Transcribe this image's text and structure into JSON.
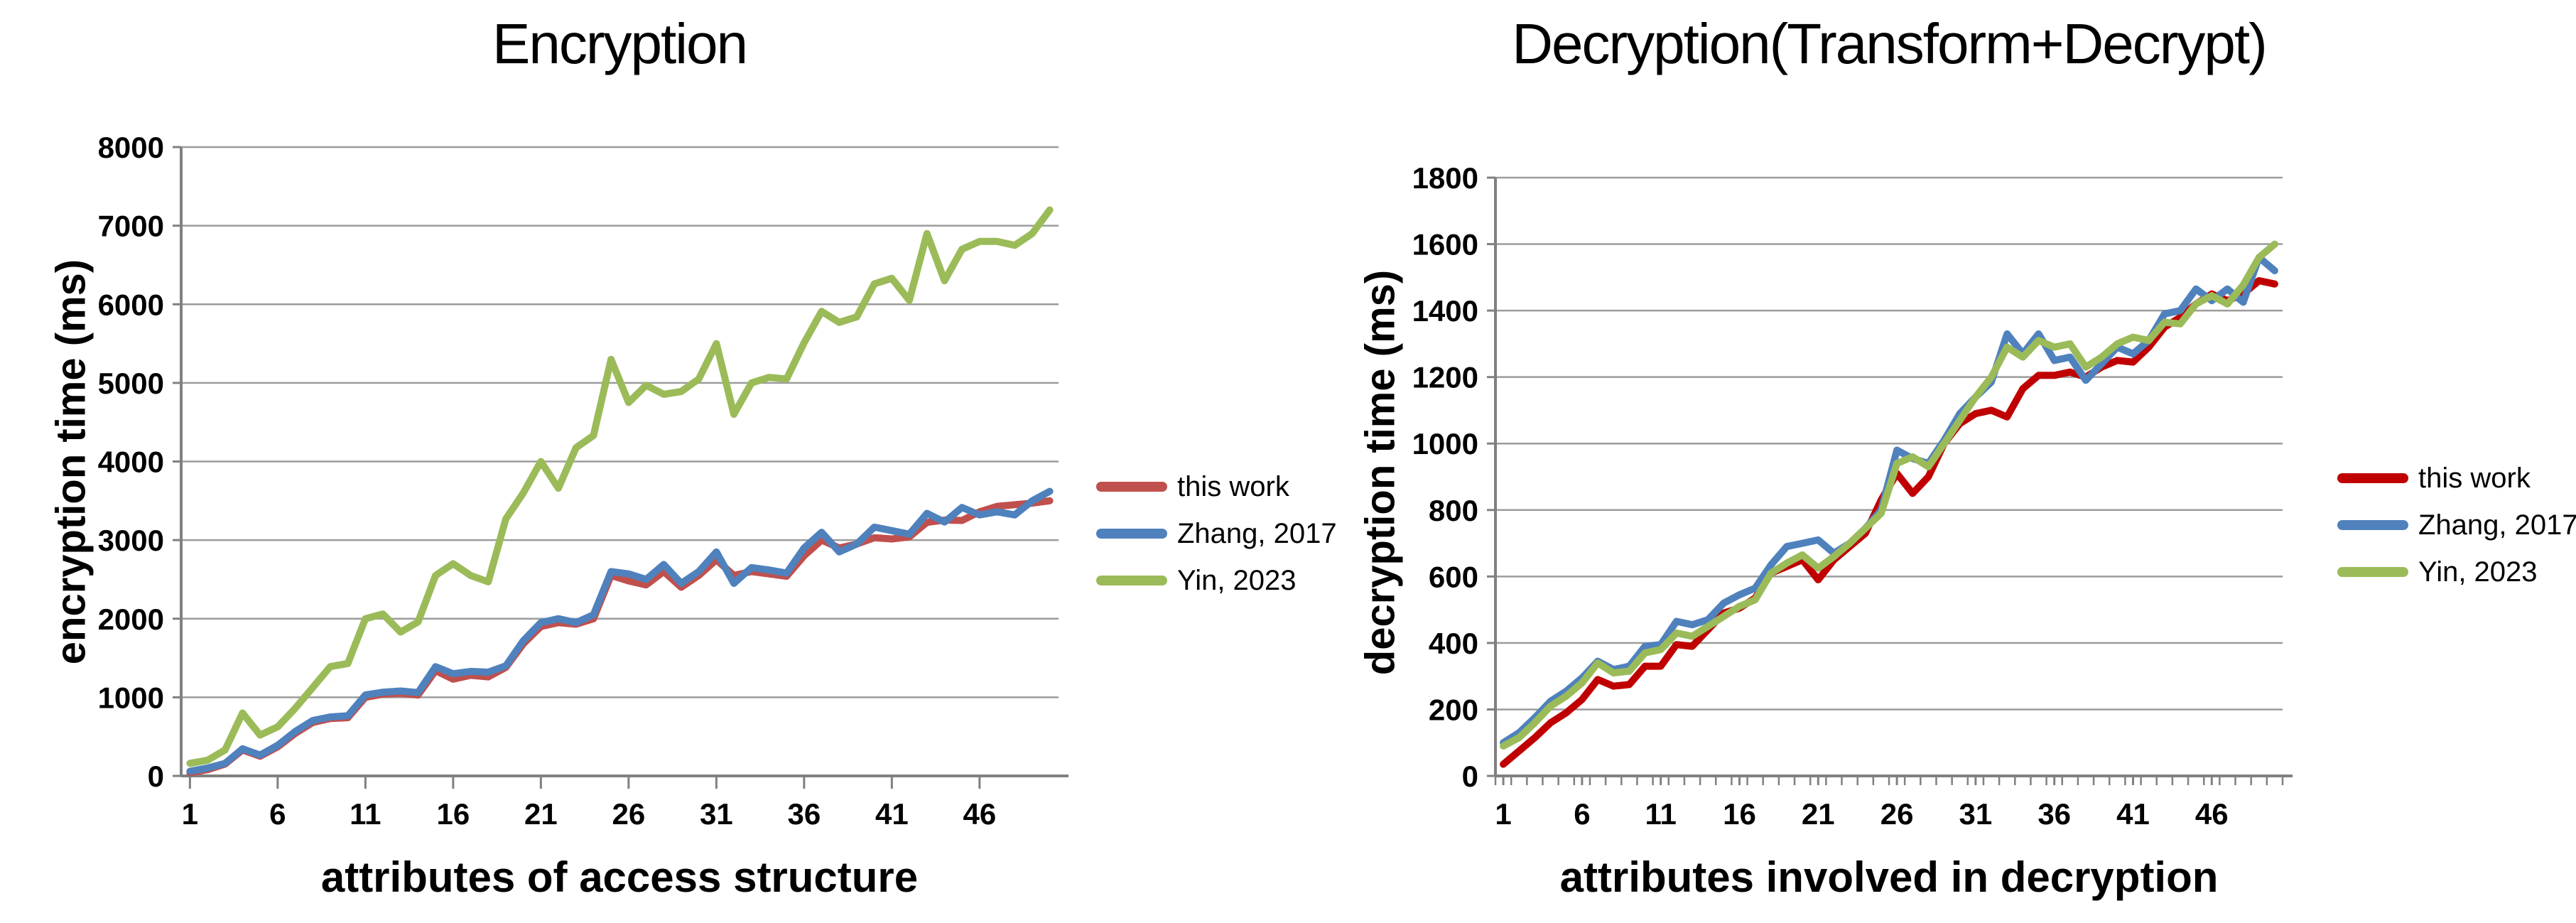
{
  "figure": {
    "background": "#ffffff",
    "gridline_color": "#9c9c9c",
    "axis_color": "#808080"
  },
  "chart_data": [
    {
      "type": "line",
      "title": "Encryption",
      "xlabel": "attributes of access structure",
      "ylabel": "encryption time (ms)",
      "x_range": [
        1,
        50
      ],
      "xticks": [
        1,
        6,
        11,
        16,
        21,
        26,
        31,
        36,
        41,
        46
      ],
      "ylim": [
        0,
        8000
      ],
      "ytick_step": 1000,
      "yticks": [
        0,
        1000,
        2000,
        3000,
        4000,
        5000,
        6000,
        7000,
        8000
      ],
      "grid": true,
      "legend_position": "right",
      "series": [
        {
          "name": "this work",
          "color": "#C0504D",
          "values": [
            40,
            80,
            150,
            330,
            250,
            370,
            540,
            680,
            730,
            740,
            1000,
            1040,
            1050,
            1030,
            1340,
            1230,
            1280,
            1260,
            1380,
            1680,
            1900,
            1950,
            1930,
            2000,
            2550,
            2480,
            2430,
            2600,
            2400,
            2550,
            2750,
            2550,
            2600,
            2570,
            2540,
            2800,
            3000,
            2900,
            2950,
            3030,
            3015,
            3040,
            3225,
            3255,
            3250,
            3360,
            3430,
            3450,
            3470,
            3500
          ]
        },
        {
          "name": "Zhang, 2017",
          "color": "#4F81BD",
          "values": [
            60,
            100,
            160,
            345,
            265,
            390,
            565,
            705,
            750,
            765,
            1030,
            1065,
            1080,
            1060,
            1390,
            1300,
            1330,
            1320,
            1400,
            1720,
            1950,
            2000,
            1950,
            2050,
            2600,
            2570,
            2500,
            2690,
            2450,
            2600,
            2850,
            2450,
            2650,
            2620,
            2580,
            2900,
            3100,
            2850,
            2950,
            3165,
            3120,
            3075,
            3340,
            3230,
            3415,
            3320,
            3360,
            3320,
            3500,
            3620
          ]
        },
        {
          "name": "Yin, 2023",
          "color": "#9BBB59",
          "values": [
            160,
            200,
            330,
            800,
            520,
            625,
            860,
            1125,
            1390,
            1430,
            2000,
            2060,
            1830,
            1960,
            2550,
            2700,
            2550,
            2470,
            3270,
            3600,
            4000,
            3660,
            4175,
            4330,
            5300,
            4750,
            4970,
            4855,
            4890,
            5050,
            5500,
            4600,
            5000,
            5070,
            5050,
            5510,
            5910,
            5770,
            5840,
            6260,
            6330,
            6050,
            6900,
            6300,
            6700,
            6800,
            6800,
            6750,
            6900,
            7200
          ]
        }
      ]
    },
    {
      "type": "line",
      "title": "Decryption(Transform+Decrypt)",
      "xlabel": "attributes involved in decryption",
      "ylabel": "decryption time (ms)",
      "x_range": [
        1,
        50
      ],
      "xticks": [
        1,
        6,
        11,
        16,
        21,
        26,
        31,
        36,
        41,
        46
      ],
      "minor_xticks_every": 1,
      "ylim": [
        0,
        1800
      ],
      "ytick_step": 200,
      "yticks": [
        0,
        200,
        400,
        600,
        800,
        1000,
        1200,
        1400,
        1600,
        1800
      ],
      "grid": true,
      "legend_position": "right",
      "series": [
        {
          "name": "this work",
          "color": "#C00000",
          "values": [
            35,
            75,
            115,
            160,
            190,
            230,
            290,
            270,
            275,
            330,
            330,
            395,
            390,
            440,
            490,
            505,
            535,
            610,
            630,
            650,
            590,
            650,
            690,
            730,
            830,
            910,
            850,
            900,
            1000,
            1060,
            1090,
            1100,
            1080,
            1165,
            1205,
            1205,
            1215,
            1200,
            1230,
            1250,
            1245,
            1290,
            1350,
            1380,
            1420,
            1450,
            1430,
            1450,
            1490,
            1480
          ]
        },
        {
          "name": "Zhang, 2017",
          "color": "#4F81BD",
          "values": [
            100,
            130,
            175,
            225,
            255,
            295,
            345,
            320,
            330,
            390,
            395,
            465,
            455,
            470,
            520,
            545,
            565,
            635,
            690,
            700,
            710,
            670,
            700,
            745,
            800,
            980,
            955,
            940,
            1010,
            1090,
            1140,
            1185,
            1330,
            1270,
            1330,
            1250,
            1260,
            1190,
            1240,
            1290,
            1270,
            1310,
            1390,
            1400,
            1465,
            1430,
            1465,
            1425,
            1560,
            1520
          ]
        },
        {
          "name": "Yin, 2023",
          "color": "#9BBB59",
          "values": [
            90,
            115,
            160,
            210,
            240,
            280,
            340,
            310,
            315,
            370,
            380,
            430,
            420,
            450,
            480,
            510,
            530,
            610,
            640,
            665,
            625,
            660,
            700,
            745,
            790,
            940,
            960,
            930,
            1000,
            1070,
            1140,
            1200,
            1290,
            1260,
            1310,
            1290,
            1300,
            1230,
            1260,
            1300,
            1320,
            1310,
            1365,
            1360,
            1420,
            1445,
            1420,
            1477,
            1560,
            1600
          ]
        }
      ]
    }
  ]
}
